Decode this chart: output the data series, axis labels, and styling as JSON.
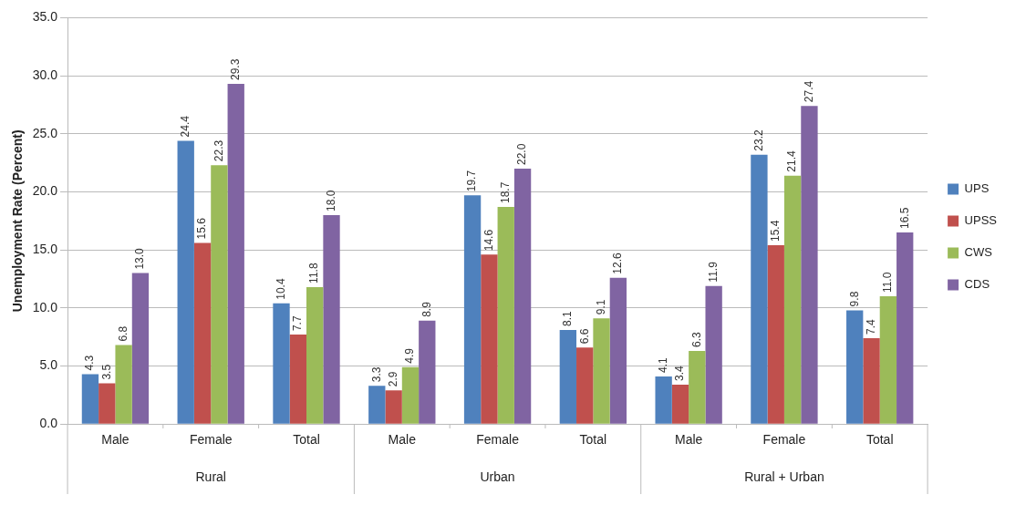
{
  "chart_data": {
    "type": "bar",
    "ylabel": "Unemployment Rate (Percent)",
    "categories": [
      "Male",
      "Female",
      "Total",
      "Male",
      "Female",
      "Total",
      "Male",
      "Female",
      "Total"
    ],
    "annotations": [
      "Rural",
      "Urban",
      "Rural + Urban"
    ],
    "series": [
      {
        "name": "UPS",
        "color": "#4f81bd",
        "values": [
          4.3,
          24.4,
          10.4,
          3.3,
          19.7,
          8.1,
          4.1,
          23.2,
          9.8
        ],
        "value_labels": [
          "4.3",
          "24.4",
          "10.4",
          "3.3",
          "19.7",
          "8.1",
          "4.1",
          "23.2",
          "9.8"
        ]
      },
      {
        "name": "UPSS",
        "color": "#c0504d",
        "values": [
          3.5,
          15.6,
          7.7,
          2.9,
          14.6,
          6.6,
          3.4,
          15.4,
          7.4
        ],
        "value_labels": [
          "3.5",
          "15.6",
          "7.7",
          "2.9",
          "14.6",
          "6.6",
          "3.4",
          "15.4",
          "7.4"
        ]
      },
      {
        "name": "CWS",
        "color": "#9bbb59",
        "values": [
          6.8,
          22.3,
          11.8,
          4.9,
          18.7,
          9.1,
          6.3,
          21.4,
          11.0
        ],
        "value_labels": [
          "6.8",
          "22.3",
          "11.8",
          "4.9",
          "18.7",
          "9.1",
          "6.3",
          "21.4",
          "11.0"
        ]
      },
      {
        "name": "CDS",
        "color": "#8064a2",
        "values": [
          13.0,
          29.3,
          18.0,
          8.9,
          22.0,
          12.6,
          11.9,
          27.4,
          16.5
        ],
        "value_labels": [
          "13.0",
          "29.3",
          "18.0",
          "8.9",
          "22.0",
          "12.6",
          "11.9",
          "27.4",
          "16.5"
        ]
      }
    ],
    "ylim": [
      0,
      35
    ],
    "yticks": [
      {
        "value": 0,
        "label": "0.0"
      },
      {
        "value": 5,
        "label": "5.0"
      },
      {
        "value": 10,
        "label": "10.0"
      },
      {
        "value": 15,
        "label": "15.0"
      },
      {
        "value": 20,
        "label": "20.0"
      },
      {
        "value": 25,
        "label": "25.0"
      },
      {
        "value": 30,
        "label": "30.0"
      },
      {
        "value": 35,
        "label": "35.0"
      }
    ],
    "grid": "y",
    "legend": "right"
  }
}
